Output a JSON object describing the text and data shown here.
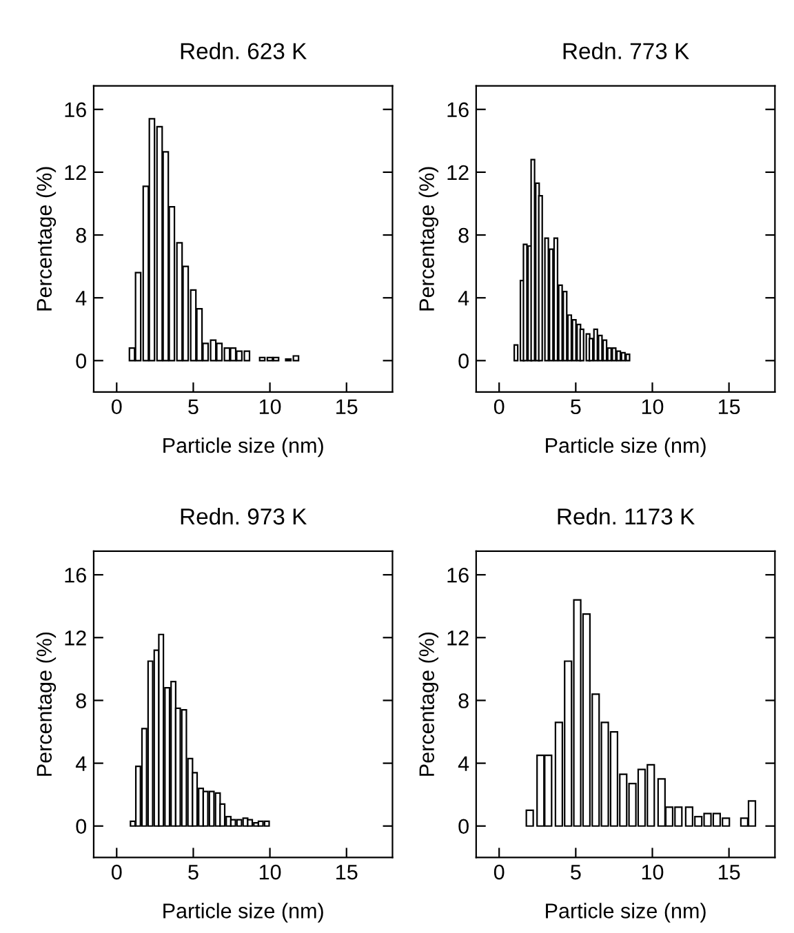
{
  "chart_data": [
    {
      "type": "bar",
      "title": "Redn. 623 K",
      "xlabel": "Particle size (nm)",
      "ylabel": "Percentage (%)",
      "color": "#ffffff",
      "x": [
        1.0,
        1.4,
        1.9,
        2.3,
        2.8,
        3.2,
        3.6,
        4.1,
        4.5,
        5.0,
        5.4,
        5.8,
        6.3,
        6.7,
        7.2,
        7.6,
        8.0,
        8.5,
        9.5,
        10.0,
        10.4,
        11.2,
        11.7
      ],
      "values": [
        0.8,
        5.6,
        11.1,
        15.4,
        14.9,
        13.3,
        9.8,
        7.5,
        6.0,
        4.5,
        3.3,
        1.1,
        1.3,
        1.1,
        0.8,
        0.8,
        0.6,
        0.6,
        0.2,
        0.2,
        0.2,
        0.1,
        0.3
      ],
      "xlim": [
        -1.5,
        18
      ],
      "ylim": [
        -2,
        17.5
      ],
      "xticks": [
        0,
        5,
        10,
        15
      ],
      "yticks": [
        0,
        4,
        8,
        12,
        16
      ],
      "grid": false
    },
    {
      "type": "bar",
      "title": "Redn. 773 K",
      "xlabel": "Particle size (nm)",
      "ylabel": "Percentage (%)",
      "color": "#ffffff",
      "x": [
        1.1,
        1.5,
        1.7,
        2.0,
        2.2,
        2.5,
        2.7,
        3.1,
        3.4,
        3.7,
        4.0,
        4.3,
        4.6,
        4.9,
        5.2,
        5.4,
        5.8,
        6.0,
        6.3,
        6.6,
        6.9,
        7.2,
        7.5,
        7.8,
        8.1,
        8.4
      ],
      "values": [
        1.0,
        5.1,
        7.4,
        7.3,
        12.8,
        11.3,
        10.5,
        7.8,
        7.1,
        7.8,
        4.8,
        4.4,
        2.9,
        2.6,
        2.3,
        2.0,
        1.7,
        1.4,
        2.0,
        1.6,
        1.3,
        0.8,
        0.8,
        0.6,
        0.5,
        0.4
      ],
      "xlim": [
        -1.5,
        18
      ],
      "ylim": [
        -2,
        17.5
      ],
      "xticks": [
        0,
        5,
        10,
        15
      ],
      "yticks": [
        0,
        4,
        8,
        12,
        16
      ],
      "grid": false
    },
    {
      "type": "bar",
      "title": "Redn. 973 K",
      "xlabel": "Particle size (nm)",
      "ylabel": "Percentage (%)",
      "color": "#ffffff",
      "x": [
        1.05,
        1.4,
        1.8,
        2.2,
        2.6,
        2.9,
        3.3,
        3.7,
        4.0,
        4.4,
        4.8,
        5.1,
        5.5,
        5.8,
        6.2,
        6.6,
        6.9,
        7.3,
        7.6,
        8.0,
        8.4,
        8.7,
        9.1,
        9.4,
        9.8
      ],
      "values": [
        0.3,
        3.8,
        6.2,
        10.5,
        11.2,
        12.2,
        8.8,
        9.2,
        7.5,
        7.4,
        4.3,
        3.4,
        2.4,
        2.2,
        2.2,
        2.1,
        1.4,
        0.6,
        0.4,
        0.4,
        0.5,
        0.4,
        0.2,
        0.3,
        0.3
      ],
      "xlim": [
        -1.5,
        18
      ],
      "ylim": [
        -2,
        17.5
      ],
      "xticks": [
        0,
        5,
        10,
        15
      ],
      "yticks": [
        0,
        4,
        8,
        12,
        16
      ],
      "grid": false
    },
    {
      "type": "bar",
      "title": "Redn. 1173 K",
      "xlabel": "Particle size (nm)",
      "ylabel": "Percentage (%)",
      "color": "#ffffff",
      "x": [
        2.0,
        2.7,
        3.2,
        3.9,
        4.5,
        5.1,
        5.7,
        6.3,
        6.9,
        7.5,
        8.1,
        8.7,
        9.3,
        9.9,
        10.6,
        11.1,
        11.7,
        12.4,
        13.0,
        13.6,
        14.2,
        14.8,
        16.0,
        16.5
      ],
      "values": [
        1.0,
        4.5,
        4.5,
        6.6,
        10.5,
        14.4,
        13.5,
        8.4,
        6.6,
        6.0,
        3.3,
        2.7,
        3.6,
        3.9,
        3.0,
        1.2,
        1.2,
        1.2,
        0.6,
        0.8,
        0.8,
        0.5,
        0.5,
        1.6
      ],
      "xlim": [
        -1.5,
        18
      ],
      "ylim": [
        -2,
        17.5
      ],
      "xticks": [
        0,
        5,
        10,
        15
      ],
      "yticks": [
        0,
        4,
        8,
        12,
        16
      ],
      "grid": false
    }
  ]
}
